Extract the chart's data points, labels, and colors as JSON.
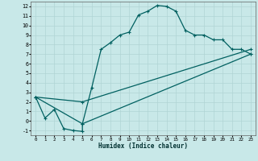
{
  "background_color": "#c8e8e8",
  "grid_color": "#b0d4d4",
  "line_color": "#006060",
  "xlabel": "Humidex (Indice chaleur)",
  "xlim": [
    -0.5,
    23.5
  ],
  "ylim": [
    -1.5,
    12.5
  ],
  "yticks": [
    -1,
    0,
    1,
    2,
    3,
    4,
    5,
    6,
    7,
    8,
    9,
    10,
    11,
    12
  ],
  "xticks": [
    0,
    1,
    2,
    3,
    4,
    5,
    6,
    7,
    8,
    9,
    10,
    11,
    12,
    13,
    14,
    15,
    16,
    17,
    18,
    19,
    20,
    21,
    22,
    23
  ],
  "line1_x": [
    0,
    1,
    2,
    3,
    4,
    5,
    5,
    6,
    7,
    8,
    9,
    10,
    11,
    12,
    13,
    14,
    15,
    16,
    17,
    18,
    19,
    20,
    21,
    22,
    23
  ],
  "line1_y": [
    2.5,
    0.3,
    1.2,
    -0.8,
    -1.0,
    -1.1,
    -0.3,
    3.5,
    7.5,
    8.2,
    9.0,
    9.3,
    11.1,
    11.5,
    12.1,
    12.0,
    11.5,
    9.5,
    9.0,
    9.0,
    8.5,
    8.5,
    7.5,
    7.5,
    7.0
  ],
  "line2_x": [
    0,
    5,
    23
  ],
  "line2_y": [
    2.5,
    2.0,
    7.5
  ],
  "line3_x": [
    0,
    5,
    23
  ],
  "line3_y": [
    2.5,
    -0.3,
    7.0
  ],
  "marker": "+"
}
